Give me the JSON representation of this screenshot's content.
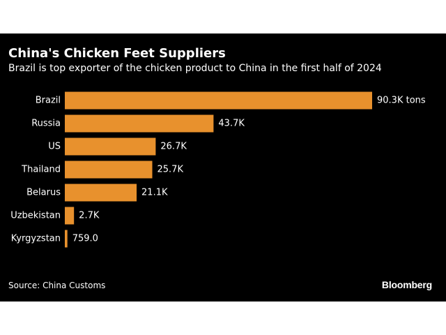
{
  "chart_data": {
    "type": "bar",
    "orientation": "horizontal",
    "title": "China's Chicken Feet Suppliers",
    "subtitle": "Brazil is top exporter of the chicken product to China in the first half of 2024",
    "categories": [
      "Brazil",
      "Russia",
      "US",
      "Thailand",
      "Belarus",
      "Uzbekistan",
      "Kyrgyzstan"
    ],
    "values": [
      90300,
      43700,
      26700,
      25700,
      21100,
      2700,
      759
    ],
    "data_labels": [
      "90.3K tons",
      "43.7K",
      "26.7K",
      "25.7K",
      "21.1K",
      "2.7K",
      "759.0"
    ],
    "unit": "tons",
    "xlim": [
      0,
      90300
    ],
    "grid": false,
    "legend": "none",
    "source": "Source: China Customs"
  },
  "brand": {
    "logo_text": "Bloomberg"
  },
  "colors": {
    "background": "#000000",
    "bar": "#e8912d",
    "text": "#ffffff"
  }
}
